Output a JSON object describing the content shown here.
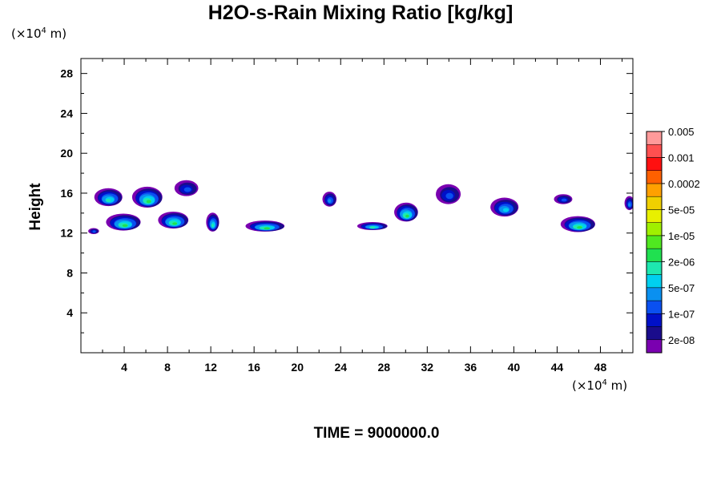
{
  "chart_data": {
    "type": "heatmap",
    "title": "H2O-s-Rain Mixing Ratio [kg/kg]",
    "xlabel": "",
    "ylabel": "Height",
    "x_unit": {
      "prefix": "(×10",
      "exp": "4",
      "suffix": " m)"
    },
    "y_unit": {
      "prefix": "(×10",
      "exp": "4",
      "suffix": " m)"
    },
    "xlim": [
      0,
      51
    ],
    "ylim": [
      0,
      29.5
    ],
    "x_ticks": [
      4,
      8,
      12,
      16,
      20,
      24,
      28,
      32,
      36,
      40,
      44,
      48
    ],
    "y_ticks": [
      4,
      8,
      12,
      16,
      20,
      24,
      28
    ],
    "levels": [
      {
        "value": 2e-08,
        "label": "2e-08",
        "color": "#1a0c8c"
      },
      {
        "value": 1e-07,
        "label": "1e-07",
        "color": "#0a1fe0"
      },
      {
        "value": 5e-07,
        "label": "5e-07",
        "color": "#00c8f0"
      },
      {
        "value": 2e-06,
        "label": "2e-06",
        "color": "#1ee8a0"
      },
      {
        "value": 1e-05,
        "label": "1e-05",
        "color": "#30e020"
      },
      {
        "value": 5e-05,
        "label": "5e-05",
        "color": "#b8f000"
      },
      {
        "value": 0.0002,
        "label": "0.0002",
        "color": "#f0f000"
      },
      {
        "value": 0.001,
        "label": "0.001",
        "color": "#ff7000"
      },
      {
        "value": 0.005,
        "label": "0.005",
        "color": "#ff4040"
      }
    ],
    "colorbar": [
      "#7a00b0",
      "#1a0c8c",
      "#0010c8",
      "#0a50f0",
      "#0a90f0",
      "#00d0f0",
      "#1ee8b0",
      "#20e050",
      "#50e820",
      "#a0f000",
      "#e8f000",
      "#f0d000",
      "#ffa000",
      "#ff6000",
      "#ff1010",
      "#ff5050",
      "#ff9a9a"
    ],
    "cells": [
      {
        "x": 2.6,
        "z": 15.6,
        "w": 2.6,
        "h": 1.8,
        "level": 6e-06
      },
      {
        "x": 6.2,
        "z": 15.6,
        "w": 2.8,
        "h": 2.1,
        "level": 1e-05
      },
      {
        "x": 9.8,
        "z": 16.5,
        "w": 2.2,
        "h": 1.6,
        "level": 2e-07
      },
      {
        "x": 4.0,
        "z": 13.1,
        "w": 3.2,
        "h": 1.7,
        "level": 8e-06
      },
      {
        "x": 8.6,
        "z": 13.3,
        "w": 2.8,
        "h": 1.7,
        "level": 8e-06
      },
      {
        "x": 12.2,
        "z": 13.1,
        "w": 1.2,
        "h": 1.9,
        "level": 4e-06
      },
      {
        "x": 1.2,
        "z": 12.2,
        "w": 1.0,
        "h": 0.6,
        "level": 4e-07
      },
      {
        "x": 17.1,
        "z": 12.7,
        "w": 3.6,
        "h": 1.1,
        "level": 1e-05
      },
      {
        "x": 23.0,
        "z": 15.4,
        "w": 1.3,
        "h": 1.5,
        "level": 5e-07
      },
      {
        "x": 27.0,
        "z": 12.7,
        "w": 2.8,
        "h": 0.8,
        "level": 3e-06
      },
      {
        "x": 30.1,
        "z": 14.1,
        "w": 2.2,
        "h": 1.9,
        "level": 1e-05
      },
      {
        "x": 34.0,
        "z": 15.9,
        "w": 2.3,
        "h": 2.0,
        "level": 3e-07
      },
      {
        "x": 39.2,
        "z": 14.6,
        "w": 2.6,
        "h": 1.9,
        "level": 2e-06
      },
      {
        "x": 44.6,
        "z": 15.4,
        "w": 1.7,
        "h": 1.0,
        "level": 3e-07
      },
      {
        "x": 46.0,
        "z": 12.9,
        "w": 3.2,
        "h": 1.6,
        "level": 1e-05
      },
      {
        "x": 50.7,
        "z": 15.0,
        "w": 0.9,
        "h": 1.4,
        "level": 5e-07
      }
    ]
  },
  "footer": {
    "time": "TIME = 9000000.0"
  }
}
